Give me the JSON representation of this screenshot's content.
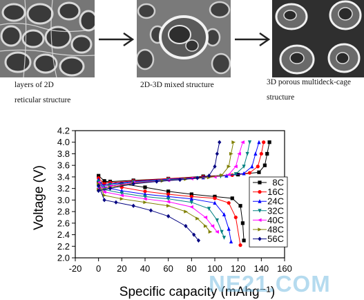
{
  "captions": {
    "panel1": [
      "layers of 2D",
      "reticular structure"
    ],
    "panel2": [
      "2D-3D mixed  structure"
    ],
    "panel3": [
      "3D porous multideck-cage",
      "structure"
    ]
  },
  "watermark": "NE21.COM",
  "chart_data": {
    "type": "line",
    "xlabel": "Specific capacity (mAhg⁻¹)",
    "ylabel": "Voltage (V)",
    "xlim": [
      -20,
      160
    ],
    "ylim": [
      2.0,
      4.2
    ],
    "xticks": [
      -20,
      0,
      20,
      40,
      60,
      80,
      100,
      120,
      140,
      160
    ],
    "yticks": [
      2.0,
      2.2,
      2.4,
      2.6,
      2.8,
      3.0,
      3.2,
      3.4,
      3.6,
      3.8,
      4.0,
      4.2
    ],
    "legend_position": "right",
    "series": [
      {
        "name": "8C",
        "color": "#000000",
        "marker": "square",
        "charge": [
          [
            0,
            3.3
          ],
          [
            10,
            3.32
          ],
          [
            30,
            3.34
          ],
          [
            60,
            3.37
          ],
          [
            90,
            3.41
          ],
          [
            120,
            3.44
          ],
          [
            138,
            3.48
          ],
          [
            143,
            3.6
          ],
          [
            145,
            3.8
          ],
          [
            147,
            4.0
          ]
        ],
        "discharge": [
          [
            0,
            3.42
          ],
          [
            5,
            3.33
          ],
          [
            20,
            3.28
          ],
          [
            40,
            3.22
          ],
          [
            60,
            3.15
          ],
          [
            80,
            3.1
          ],
          [
            100,
            3.06
          ],
          [
            115,
            3.03
          ],
          [
            122,
            2.9
          ],
          [
            124,
            2.6
          ],
          [
            125,
            2.3
          ]
        ]
      },
      {
        "name": "16C",
        "color": "#ff0000",
        "marker": "circle",
        "charge": [
          [
            0,
            3.28
          ],
          [
            10,
            3.3
          ],
          [
            30,
            3.33
          ],
          [
            60,
            3.37
          ],
          [
            90,
            3.4
          ],
          [
            115,
            3.43
          ],
          [
            130,
            3.47
          ],
          [
            137,
            3.58
          ],
          [
            140,
            3.8
          ],
          [
            142,
            4.0
          ]
        ],
        "discharge": [
          [
            0,
            3.38
          ],
          [
            5,
            3.28
          ],
          [
            20,
            3.22
          ],
          [
            40,
            3.15
          ],
          [
            60,
            3.1
          ],
          [
            80,
            3.06
          ],
          [
            100,
            3.03
          ],
          [
            112,
            2.95
          ],
          [
            118,
            2.7
          ],
          [
            122,
            2.22
          ]
        ]
      },
      {
        "name": "24C",
        "color": "#0000ff",
        "marker": "triangle-up",
        "charge": [
          [
            0,
            3.25
          ],
          [
            10,
            3.28
          ],
          [
            30,
            3.32
          ],
          [
            60,
            3.36
          ],
          [
            90,
            3.39
          ],
          [
            110,
            3.42
          ],
          [
            125,
            3.46
          ],
          [
            132,
            3.58
          ],
          [
            135,
            3.8
          ],
          [
            138,
            4.0
          ]
        ],
        "discharge": [
          [
            0,
            3.35
          ],
          [
            5,
            3.22
          ],
          [
            20,
            3.16
          ],
          [
            40,
            3.1
          ],
          [
            60,
            3.06
          ],
          [
            80,
            3.02
          ],
          [
            100,
            2.95
          ],
          [
            108,
            2.75
          ],
          [
            112,
            2.5
          ],
          [
            114,
            2.28
          ]
        ]
      },
      {
        "name": "32C",
        "color": "#008080",
        "marker": "triangle-down",
        "charge": [
          [
            0,
            3.22
          ],
          [
            10,
            3.26
          ],
          [
            30,
            3.31
          ],
          [
            60,
            3.35
          ],
          [
            85,
            3.38
          ],
          [
            105,
            3.41
          ],
          [
            118,
            3.45
          ],
          [
            125,
            3.58
          ],
          [
            128,
            3.8
          ],
          [
            130,
            4.0
          ]
        ],
        "discharge": [
          [
            0,
            3.32
          ],
          [
            5,
            3.18
          ],
          [
            20,
            3.12
          ],
          [
            40,
            3.06
          ],
          [
            60,
            3.02
          ],
          [
            80,
            2.96
          ],
          [
            95,
            2.85
          ],
          [
            102,
            2.65
          ],
          [
            106,
            2.45
          ],
          [
            108,
            2.35
          ]
        ]
      },
      {
        "name": "40C",
        "color": "#ff00ff",
        "marker": "triangle-left",
        "charge": [
          [
            0,
            3.2
          ],
          [
            10,
            3.24
          ],
          [
            30,
            3.3
          ],
          [
            60,
            3.34
          ],
          [
            80,
            3.37
          ],
          [
            100,
            3.4
          ],
          [
            112,
            3.44
          ],
          [
            118,
            3.58
          ],
          [
            121,
            3.8
          ],
          [
            124,
            4.0
          ]
        ],
        "discharge": [
          [
            0,
            3.3
          ],
          [
            5,
            3.14
          ],
          [
            20,
            3.08
          ],
          [
            40,
            3.02
          ],
          [
            60,
            2.97
          ],
          [
            80,
            2.88
          ],
          [
            92,
            2.7
          ],
          [
            98,
            2.55
          ],
          [
            102,
            2.45
          ]
        ]
      },
      {
        "name": "48C",
        "color": "#808000",
        "marker": "triangle-right",
        "charge": [
          [
            0,
            3.18
          ],
          [
            10,
            3.22
          ],
          [
            30,
            3.29
          ],
          [
            55,
            3.33
          ],
          [
            75,
            3.36
          ],
          [
            95,
            3.39
          ],
          [
            106,
            3.43
          ],
          [
            112,
            3.58
          ],
          [
            114,
            3.8
          ],
          [
            116,
            4.0
          ]
        ],
        "discharge": [
          [
            0,
            3.28
          ],
          [
            5,
            3.08
          ],
          [
            20,
            3.02
          ],
          [
            40,
            2.96
          ],
          [
            60,
            2.9
          ],
          [
            75,
            2.8
          ],
          [
            85,
            2.68
          ],
          [
            92,
            2.55
          ],
          [
            96,
            2.45
          ]
        ]
      },
      {
        "name": "56C",
        "color": "#000080",
        "marker": "diamond",
        "charge": [
          [
            0,
            3.16
          ],
          [
            10,
            3.2
          ],
          [
            30,
            3.28
          ],
          [
            50,
            3.32
          ],
          [
            70,
            3.35
          ],
          [
            85,
            3.38
          ],
          [
            95,
            3.42
          ],
          [
            100,
            3.58
          ],
          [
            102,
            3.8
          ],
          [
            104,
            4.0
          ]
        ],
        "discharge": [
          [
            0,
            3.25
          ],
          [
            5,
            3.0
          ],
          [
            15,
            2.96
          ],
          [
            30,
            2.9
          ],
          [
            45,
            2.82
          ],
          [
            60,
            2.72
          ],
          [
            75,
            2.55
          ],
          [
            82,
            2.4
          ],
          [
            86,
            2.3
          ]
        ]
      }
    ]
  }
}
